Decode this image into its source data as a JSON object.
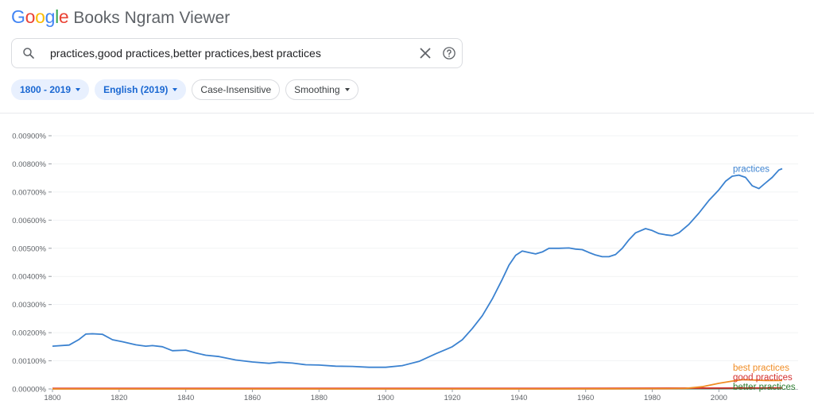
{
  "app": {
    "logo_letters": [
      {
        "ch": "G",
        "color": "#4285F4"
      },
      {
        "ch": "o",
        "color": "#EA4335"
      },
      {
        "ch": "o",
        "color": "#FBBC05"
      },
      {
        "ch": "g",
        "color": "#4285F4"
      },
      {
        "ch": "l",
        "color": "#34A853"
      },
      {
        "ch": "e",
        "color": "#EA4335"
      }
    ],
    "product_name": "Books Ngram Viewer"
  },
  "search": {
    "value": "practices,good practices,better practices,best practices"
  },
  "filters": {
    "year_range": "1800 - 2019",
    "corpus": "English (2019)",
    "case": "Case-Insensitive",
    "smoothing": "Smoothing"
  },
  "chart_data": {
    "type": "line",
    "xlim": [
      1800,
      2019
    ],
    "ylim": [
      0,
      0.009
    ],
    "x_ticks": [
      "1800",
      "1820",
      "1840",
      "1860",
      "1880",
      "1900",
      "1920",
      "1940",
      "1960",
      "1980",
      "2000"
    ],
    "y_ticks": [
      "0.00000%",
      "0.00100%",
      "0.00200%",
      "0.00300%",
      "0.00400%",
      "0.00500%",
      "0.00600%",
      "0.00700%",
      "0.00800%",
      "0.00900%"
    ],
    "grid": true,
    "series": [
      {
        "name": "practices",
        "color": "#3b82d0",
        "points": [
          [
            1800,
            0.00152
          ],
          [
            1805,
            0.00156
          ],
          [
            1808,
            0.00176
          ],
          [
            1810,
            0.00195
          ],
          [
            1812,
            0.00196
          ],
          [
            1815,
            0.00194
          ],
          [
            1818,
            0.00175
          ],
          [
            1821,
            0.00168
          ],
          [
            1825,
            0.00157
          ],
          [
            1828,
            0.00152
          ],
          [
            1830,
            0.00154
          ],
          [
            1833,
            0.0015
          ],
          [
            1836,
            0.00136
          ],
          [
            1840,
            0.00138
          ],
          [
            1843,
            0.00128
          ],
          [
            1846,
            0.0012
          ],
          [
            1850,
            0.00115
          ],
          [
            1855,
            0.00103
          ],
          [
            1860,
            0.00096
          ],
          [
            1865,
            0.00091
          ],
          [
            1868,
            0.00095
          ],
          [
            1872,
            0.00092
          ],
          [
            1876,
            0.00086
          ],
          [
            1880,
            0.00085
          ],
          [
            1885,
            0.00081
          ],
          [
            1890,
            0.0008
          ],
          [
            1895,
            0.00077
          ],
          [
            1900,
            0.00077
          ],
          [
            1905,
            0.00083
          ],
          [
            1910,
            0.00098
          ],
          [
            1915,
            0.00125
          ],
          [
            1918,
            0.0014
          ],
          [
            1920,
            0.0015
          ],
          [
            1923,
            0.00175
          ],
          [
            1926,
            0.00215
          ],
          [
            1929,
            0.0026
          ],
          [
            1932,
            0.0032
          ],
          [
            1935,
            0.0039
          ],
          [
            1937,
            0.0044
          ],
          [
            1939,
            0.00475
          ],
          [
            1941,
            0.0049
          ],
          [
            1943,
            0.00485
          ],
          [
            1945,
            0.0048
          ],
          [
            1947,
            0.00487
          ],
          [
            1949,
            0.005
          ],
          [
            1952,
            0.005
          ],
          [
            1955,
            0.00501
          ],
          [
            1957,
            0.00497
          ],
          [
            1959,
            0.00495
          ],
          [
            1961,
            0.00485
          ],
          [
            1963,
            0.00476
          ],
          [
            1965,
            0.0047
          ],
          [
            1967,
            0.0047
          ],
          [
            1969,
            0.00478
          ],
          [
            1971,
            0.005
          ],
          [
            1973,
            0.0053
          ],
          [
            1975,
            0.00555
          ],
          [
            1978,
            0.0057
          ],
          [
            1980,
            0.00563
          ],
          [
            1982,
            0.00552
          ],
          [
            1984,
            0.00548
          ],
          [
            1986,
            0.00545
          ],
          [
            1988,
            0.00555
          ],
          [
            1991,
            0.00585
          ],
          [
            1994,
            0.00625
          ],
          [
            1997,
            0.0067
          ],
          [
            2000,
            0.00708
          ],
          [
            2002,
            0.00738
          ],
          [
            2004,
            0.00756
          ],
          [
            2006,
            0.0076
          ],
          [
            2008,
            0.00752
          ],
          [
            2010,
            0.00722
          ],
          [
            2012,
            0.00712
          ],
          [
            2014,
            0.00732
          ],
          [
            2016,
            0.00752
          ],
          [
            2018,
            0.00778
          ],
          [
            2019,
            0.00783
          ]
        ]
      },
      {
        "name": "best practices",
        "color": "#f08c24",
        "points": [
          [
            1800,
            0.0
          ],
          [
            1950,
            0.0
          ],
          [
            1985,
            1e-05
          ],
          [
            1990,
            2e-05
          ],
          [
            1995,
            8e-05
          ],
          [
            2000,
            0.0002
          ],
          [
            2004,
            0.00028
          ],
          [
            2007,
            0.00033
          ],
          [
            2010,
            0.00032
          ],
          [
            2014,
            0.0003
          ],
          [
            2019,
            0.0003
          ]
        ]
      },
      {
        "name": "good practices",
        "color": "#d32f2f",
        "points": [
          [
            1800,
            2e-05
          ],
          [
            1900,
            2e-05
          ],
          [
            1950,
            2e-05
          ],
          [
            2000,
            3e-05
          ],
          [
            2019,
            4e-05
          ]
        ]
      },
      {
        "name": "better practices",
        "color": "#2e7d32",
        "points": [
          [
            1800,
            1e-05
          ],
          [
            1900,
            1e-05
          ],
          [
            1950,
            1e-05
          ],
          [
            2000,
            2e-05
          ],
          [
            2019,
            3e-05
          ]
        ]
      }
    ]
  }
}
